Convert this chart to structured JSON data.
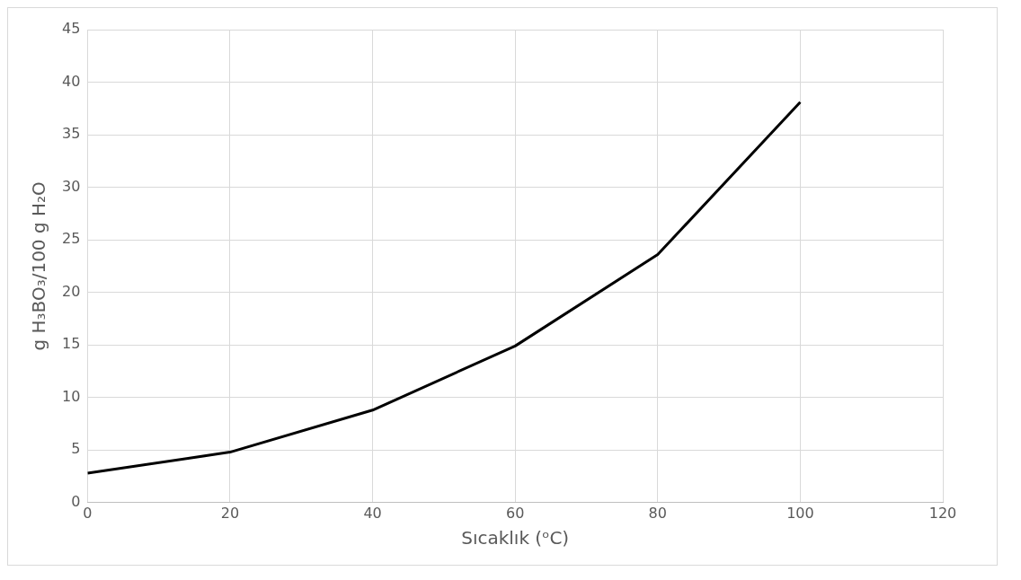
{
  "chart_data": {
    "type": "line",
    "xlabel": "Sıcaklık (ᵒC)",
    "ylabel": "g H₃BO₃/100 g H₂O",
    "x": [
      0,
      20,
      40,
      60,
      80,
      100
    ],
    "series": [
      {
        "color": "#000000",
        "values": [
          2.8,
          4.8,
          8.8,
          14.9,
          23.6,
          38.1
        ]
      }
    ],
    "xlim": [
      0,
      120
    ],
    "xticks": [
      0,
      20,
      40,
      60,
      80,
      100,
      120
    ],
    "ylim": [
      0,
      45
    ],
    "yticks": [
      0,
      5,
      10,
      15,
      20,
      25,
      30,
      35,
      40,
      45
    ],
    "grid": true,
    "legend": false,
    "marker": "none",
    "line_style": "solid"
  }
}
